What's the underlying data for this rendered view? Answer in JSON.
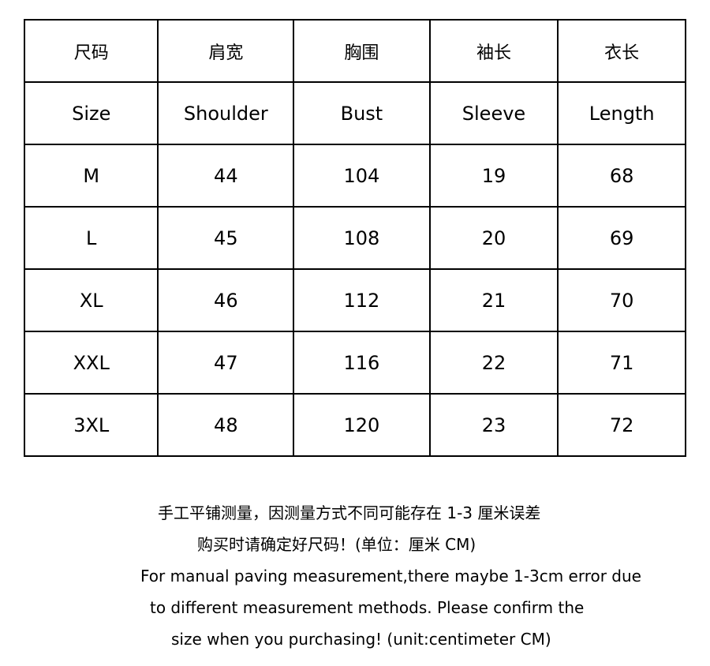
{
  "table": {
    "header_zh": [
      "尺码",
      "肩宽",
      "胸围",
      "袖长",
      "衣长"
    ],
    "header_en": [
      "Size",
      "Shoulder",
      "Bust",
      "Sleeve",
      "Length"
    ],
    "rows": [
      [
        "M",
        "44",
        "104",
        "19",
        "68"
      ],
      [
        "L",
        "45",
        "108",
        "20",
        "69"
      ],
      [
        "XL",
        "46",
        "112",
        "21",
        "70"
      ],
      [
        "XXL",
        "47",
        "116",
        "22",
        "71"
      ],
      [
        "3XL",
        "48",
        "120",
        "23",
        "72"
      ]
    ]
  },
  "notes": {
    "zh_line1": "手工平铺测量，因测量方式不同可能存在 1-3 厘米误差",
    "zh_line2": "购买时请确定好尺码！(单位：厘米 CM)",
    "en_line1": "For manual paving measurement,there maybe 1-3cm error due",
    "en_line2": "to different measurement methods. Please confirm the",
    "en_line3": "size when you purchasing! (unit:centimeter CM)"
  }
}
